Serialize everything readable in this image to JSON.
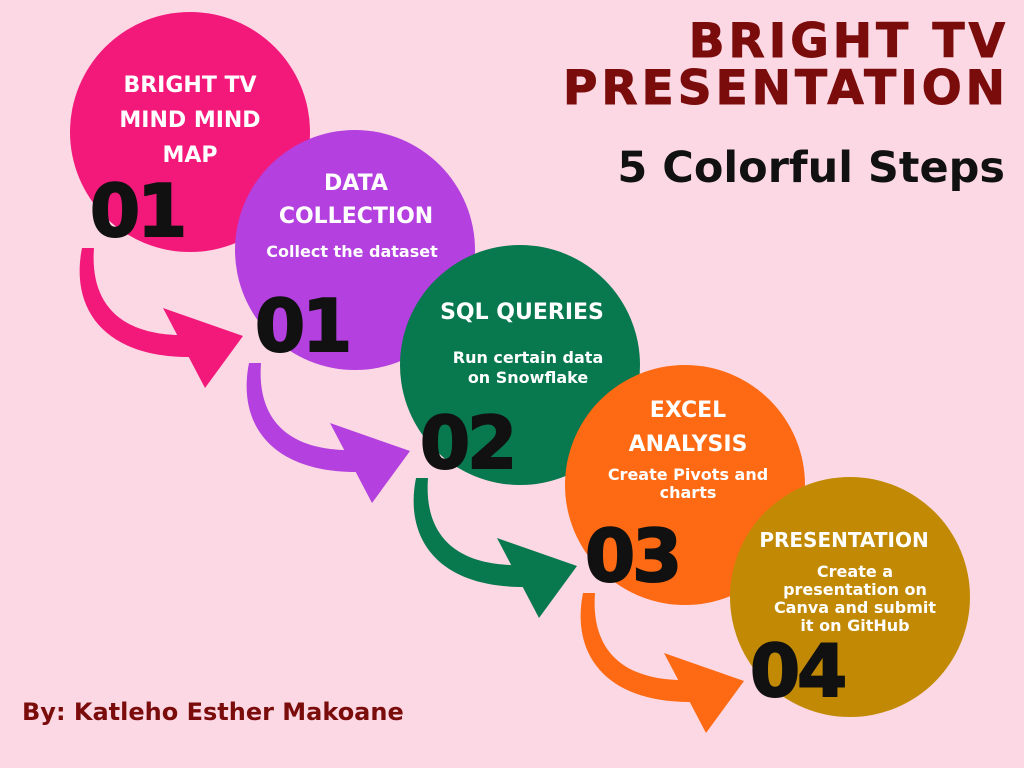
{
  "header": {
    "title_line1": "BRIGHT TV",
    "title_line2": "PRESENTATION",
    "subtitle": "5 Colorful Steps"
  },
  "author": "By: Katleho Esther Makoane",
  "colors": {
    "background": "#fbd8e3",
    "title": "#7b0c0c",
    "subtitle": "#111111",
    "author": "#7b0c0c",
    "step_text": "#ffffff",
    "step_number": "#111111"
  },
  "steps": [
    {
      "title_lines": [
        "BRIGHT TV",
        "MIND MIND",
        "MAP"
      ],
      "description_lines": [],
      "number": "01",
      "color": "#f2197b"
    },
    {
      "title_lines": [
        "DATA",
        "COLLECTION"
      ],
      "description_lines": [
        "Collect the dataset"
      ],
      "number": "01",
      "color": "#b340df"
    },
    {
      "title_lines": [
        "SQL QUERIES"
      ],
      "description_lines": [
        "Run certain data",
        "on Snowflake"
      ],
      "number": "02",
      "color": "#08784f"
    },
    {
      "title_lines": [
        "EXCEL",
        "ANALYSIS"
      ],
      "description_lines": [
        "Create Pivots and",
        "charts"
      ],
      "number": "03",
      "color": "#fe6a13"
    },
    {
      "title_lines": [
        "PRESENTATION"
      ],
      "description_lines": [
        "Create a",
        "presentation on",
        "Canva and submit",
        "it on GitHub"
      ],
      "number": "04",
      "color": "#c28a04"
    }
  ]
}
